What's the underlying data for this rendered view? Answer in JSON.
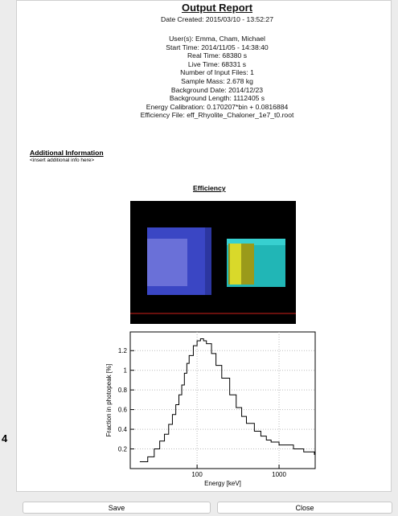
{
  "report": {
    "title": "Output Report",
    "date_created": "Date Created: 2015/03/10 - 13:52:27",
    "info_lines": [
      "User(s): Emma, Cham, Michael",
      "Start Time: 2014/11/05 - 14:38:40",
      "Real Time: 68380 s",
      "Live Time: 68331 s",
      "Number of Input Files: 1",
      "Sample Mass: 2.678 kg",
      "Background Date: 2014/12/23",
      "Background Length: 1112405 s",
      "Energy Calibration: 0.170207*bin + 0.0816884",
      "Efficiency File: eff_Rhyolite_Chaloner_1e7_t0.root"
    ],
    "additional_heading": "Additional Information",
    "additional_text": "<insert additional info here>",
    "efficiency_heading": "Efficiency"
  },
  "side_text": "4",
  "chart_data": {
    "type": "line",
    "xlabel": "Energy [keV]",
    "ylabel": "Fraction in photopeak [%]",
    "log_x": true,
    "grid": true,
    "color": "#000000",
    "x": [
      20,
      25,
      30,
      35,
      40,
      45,
      50,
      55,
      60,
      65,
      70,
      75,
      80,
      90,
      100,
      110,
      120,
      130,
      150,
      170,
      200,
      250,
      300,
      350,
      400,
      500,
      600,
      700,
      800,
      1000,
      1500,
      2000,
      2700
    ],
    "values": [
      0.07,
      0.12,
      0.2,
      0.28,
      0.35,
      0.45,
      0.55,
      0.65,
      0.75,
      0.85,
      0.97,
      1.07,
      1.15,
      1.25,
      1.3,
      1.32,
      1.3,
      1.27,
      1.17,
      1.05,
      0.92,
      0.75,
      0.62,
      0.53,
      0.46,
      0.38,
      0.33,
      0.29,
      0.27,
      0.24,
      0.2,
      0.17,
      0.14
    ],
    "xlim": [
      15.3,
      2760
    ],
    "xticks": [
      100,
      1000
    ],
    "ylim": [
      0,
      1.39
    ],
    "yticks": [
      0.2,
      0.4,
      0.6,
      0.8,
      1,
      1.2
    ]
  },
  "buttons": [
    "Save",
    "Close"
  ]
}
